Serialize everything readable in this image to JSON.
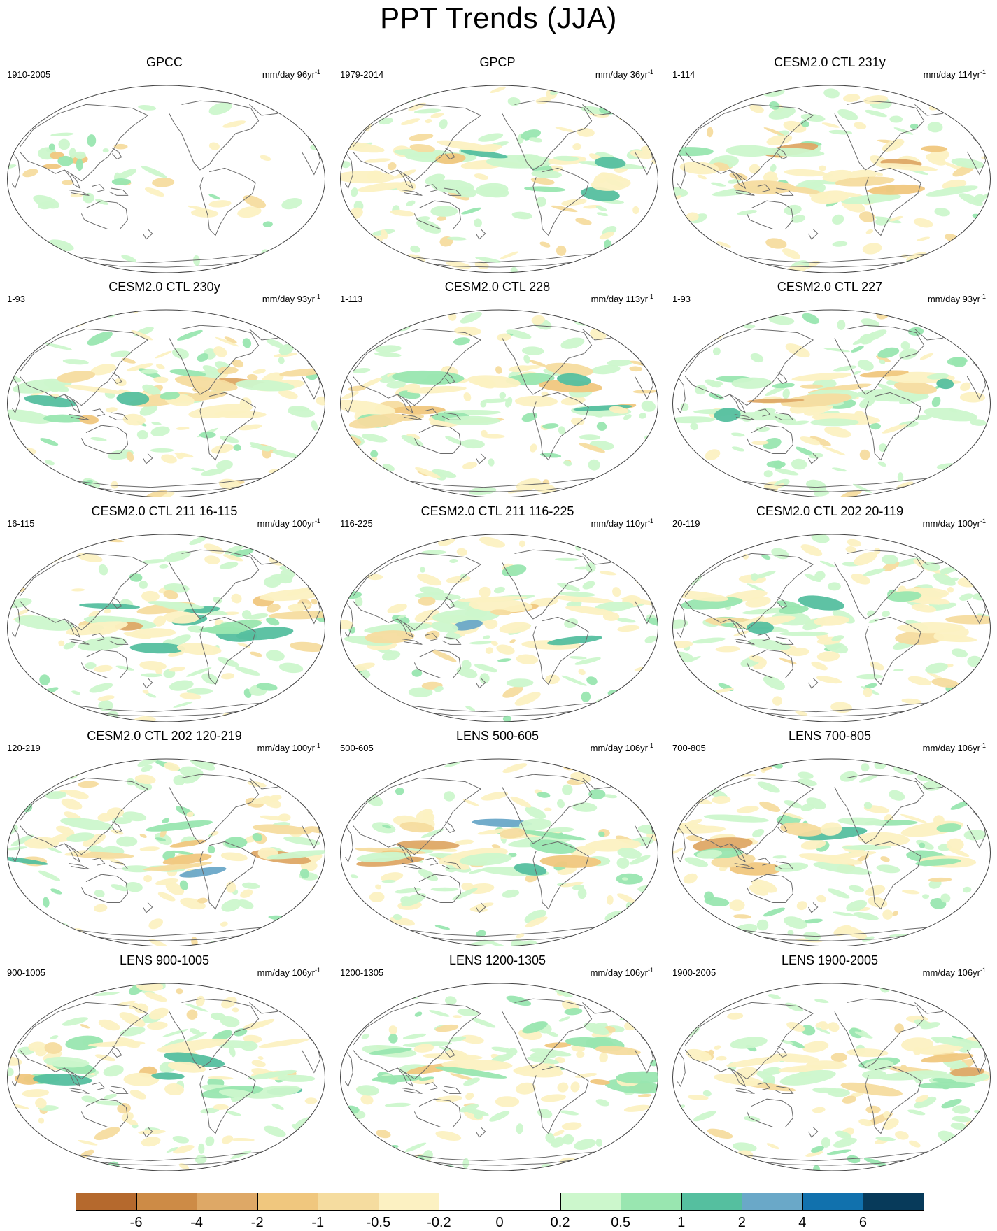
{
  "title": "PPT Trends (JJA)",
  "panels": [
    {
      "title": "GPCC",
      "period": "1910-2005",
      "units_prefix": "mm/day 96yr",
      "units_exp": "-1"
    },
    {
      "title": "GPCP",
      "period": "1979-2014",
      "units_prefix": "mm/day 36yr",
      "units_exp": "-1"
    },
    {
      "title": "CESM2.0 CTL 231y",
      "period": "1-114",
      "units_prefix": "mm/day 114yr",
      "units_exp": "-1"
    },
    {
      "title": "CESM2.0 CTL 230y",
      "period": "1-93",
      "units_prefix": "mm/day 93yr",
      "units_exp": "-1"
    },
    {
      "title": "CESM2.0 CTL 228",
      "period": "1-113",
      "units_prefix": "mm/day 113yr",
      "units_exp": "-1"
    },
    {
      "title": "CESM2.0 CTL 227",
      "period": "1-93",
      "units_prefix": "mm/day 93yr",
      "units_exp": "-1"
    },
    {
      "title": "CESM2.0 CTL 211 16-115",
      "period": "16-115",
      "units_prefix": "mm/day 100yr",
      "units_exp": "-1"
    },
    {
      "title": "CESM2.0 CTL 211 116-225",
      "period": "116-225",
      "units_prefix": "mm/day 110yr",
      "units_exp": "-1"
    },
    {
      "title": "CESM2.0 CTL 202 20-119",
      "period": "20-119",
      "units_prefix": "mm/day 100yr",
      "units_exp": "-1"
    },
    {
      "title": "CESM2.0 CTL 202 120-219",
      "period": "120-219",
      "units_prefix": "mm/day 100yr",
      "units_exp": "-1"
    },
    {
      "title": "LENS 500-605",
      "period": "500-605",
      "units_prefix": "mm/day 106yr",
      "units_exp": "-1"
    },
    {
      "title": "LENS 700-805",
      "period": "700-805",
      "units_prefix": "mm/day 106yr",
      "units_exp": "-1"
    },
    {
      "title": "LENS 900-1005",
      "period": "900-1005",
      "units_prefix": "mm/day 106yr",
      "units_exp": "-1"
    },
    {
      "title": "LENS 1200-1305",
      "period": "1200-1305",
      "units_prefix": "mm/day 106yr",
      "units_exp": "-1"
    },
    {
      "title": "LENS 1900-2005",
      "period": "1900-2005",
      "units_prefix": "mm/day 106yr",
      "units_exp": "-1"
    }
  ],
  "colorbar": {
    "labels": [
      "-6",
      "-4",
      "-2",
      "-1",
      "-0.5",
      "-0.2",
      "0",
      "0.2",
      "0.5",
      "1",
      "2",
      "4",
      "6"
    ],
    "colors": [
      "#b5692d",
      "#cd8b46",
      "#dea866",
      "#f0c77e",
      "#f5dc9f",
      "#fcf1c2",
      "#ffffff",
      "#ffffff",
      "#ccf7cc",
      "#99e6b0",
      "#55bf9f",
      "#6aa8c8",
      "#1171ad",
      "#073a5a"
    ]
  }
}
